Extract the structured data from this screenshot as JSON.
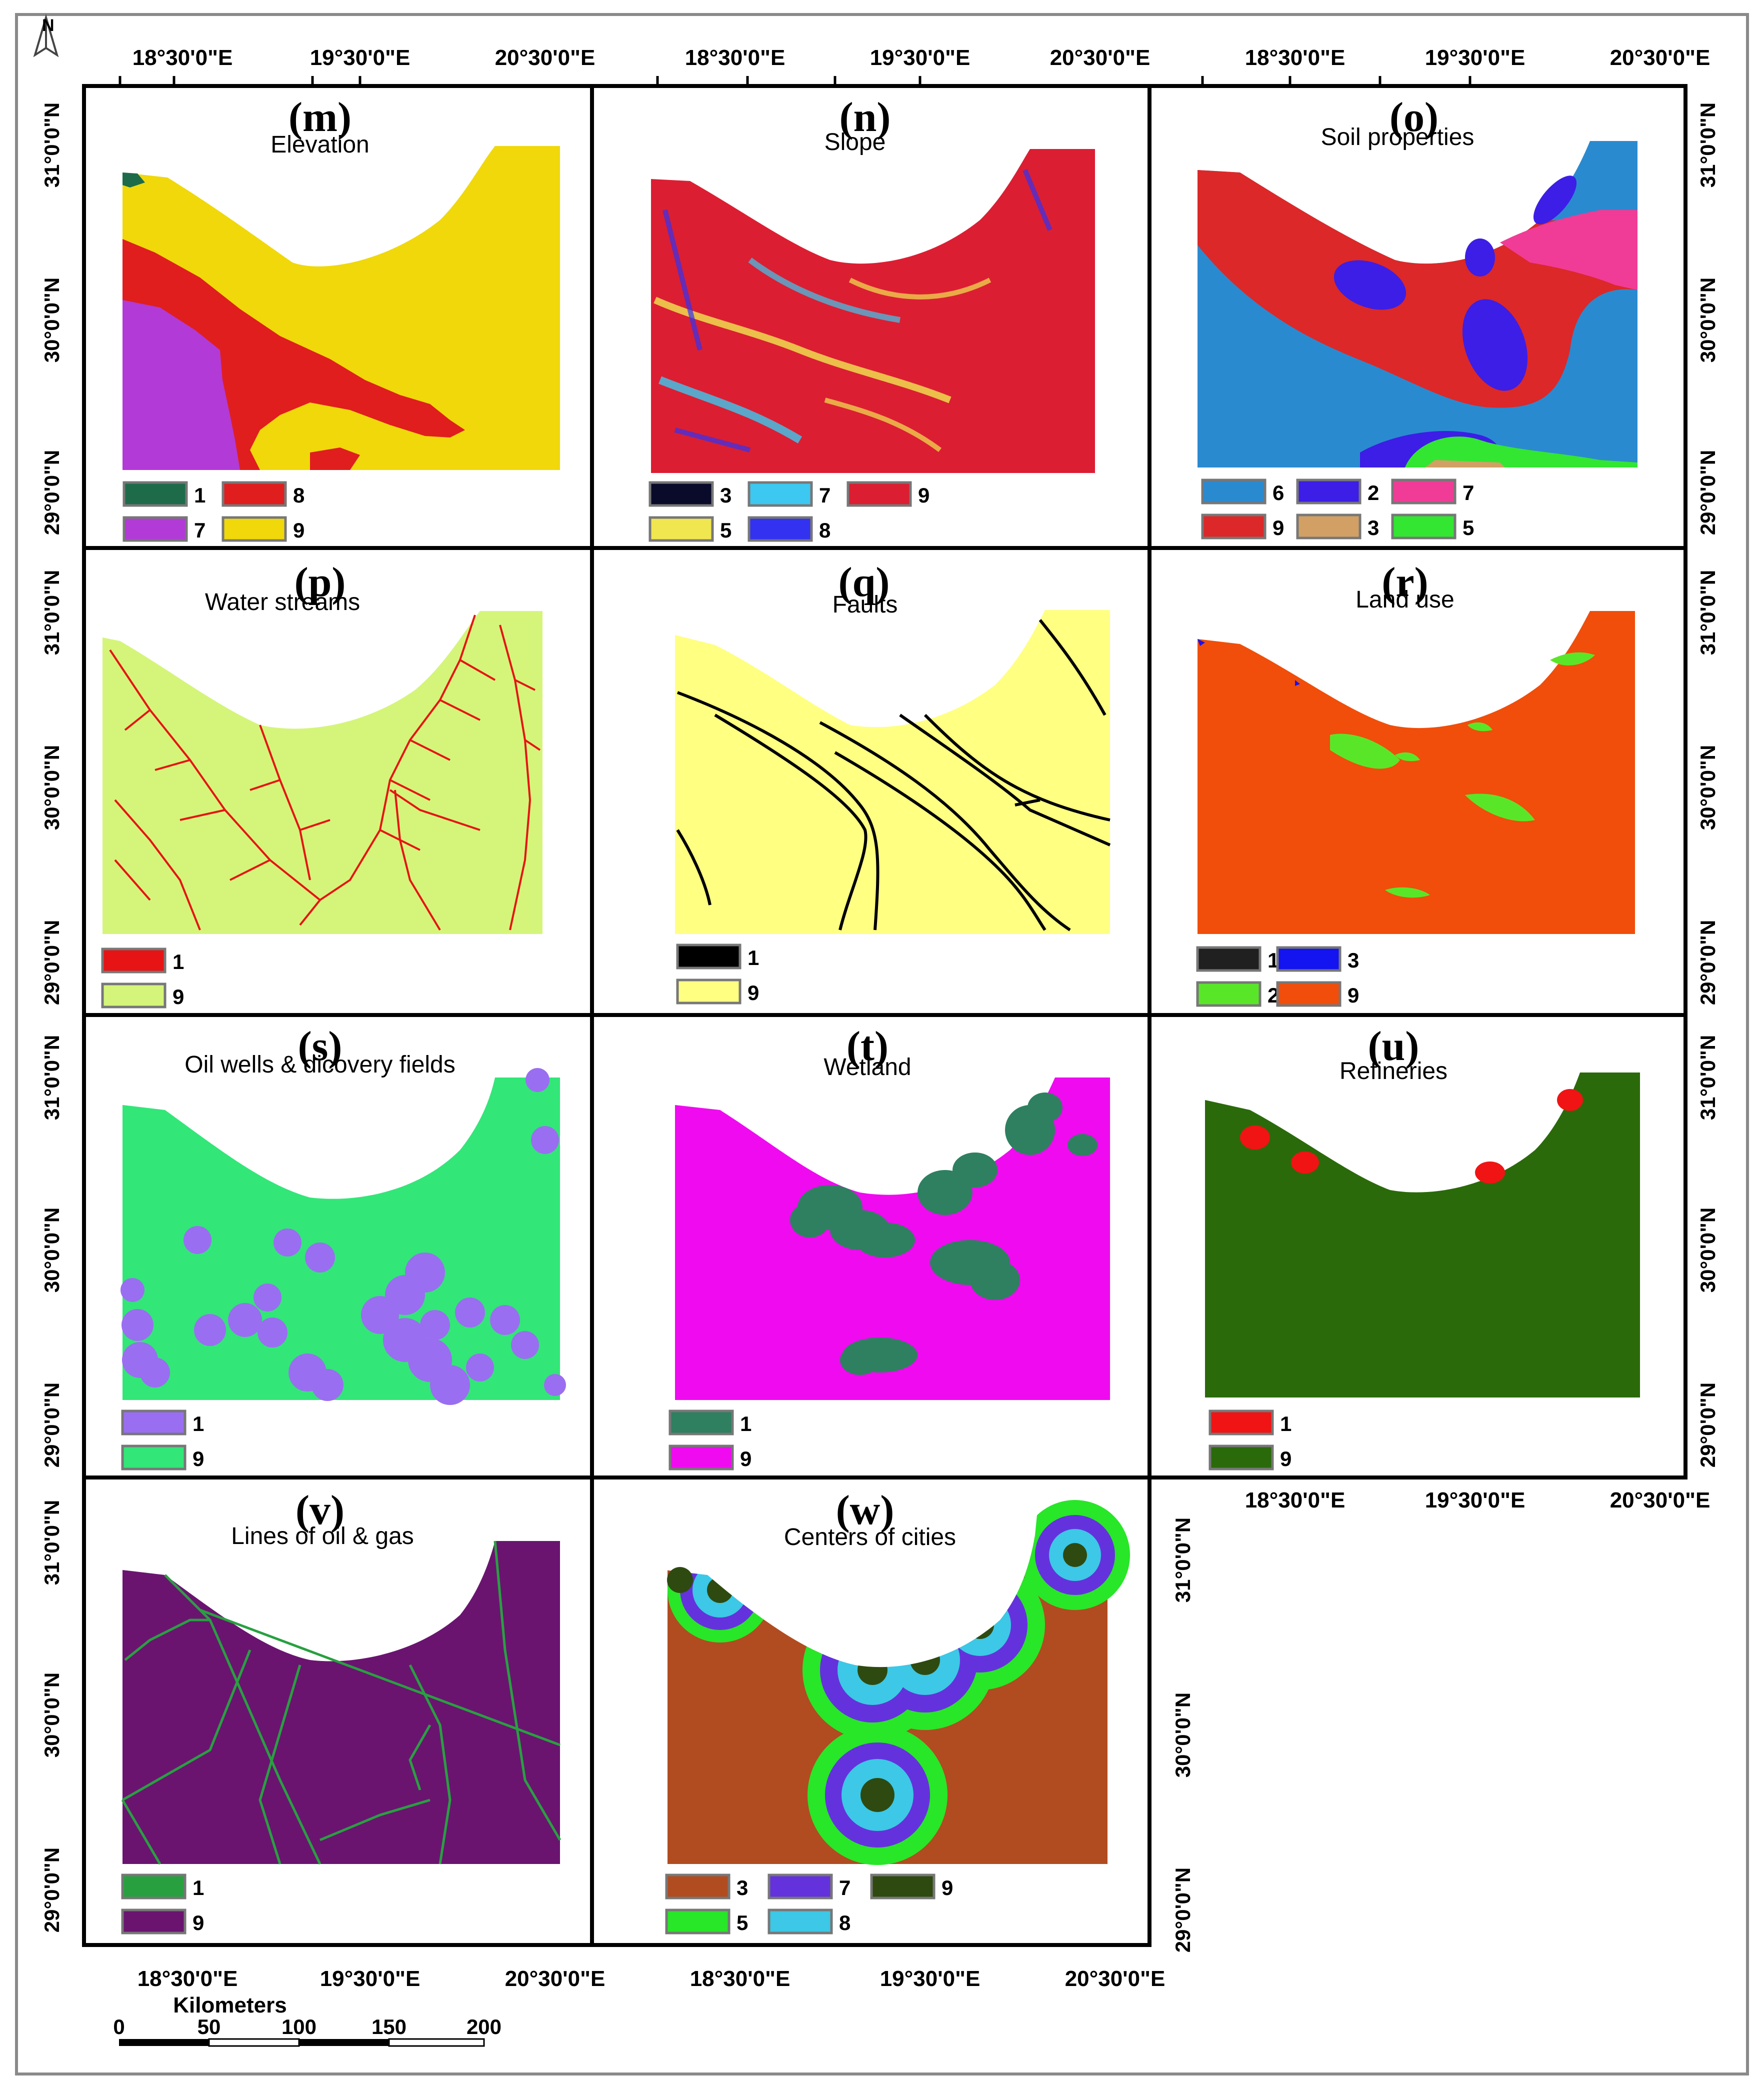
{
  "north_label": "N",
  "lon_ticks": [
    "18°30'0\"E",
    "19°30'0\"E",
    "20°30'0\"E"
  ],
  "lat_ticks": [
    "31°0'0\"N",
    "30°0'0\"N",
    "29°0'0\"N"
  ],
  "panels": [
    {
      "id": "m",
      "letter": "(m)",
      "title": "Elevation",
      "legend": [
        {
          "label": "1",
          "color": "#1e6b4a"
        },
        {
          "label": "8",
          "color": "#e01e1e"
        },
        {
          "label": "7",
          "color": "#b23ad6"
        },
        {
          "label": "9",
          "color": "#f0d80a"
        }
      ]
    },
    {
      "id": "n",
      "letter": "(n)",
      "title": "Slope",
      "legend": [
        {
          "label": "3",
          "color": "#0a0a2a"
        },
        {
          "label": "7",
          "color": "#3cc8f0"
        },
        {
          "label": "9",
          "color": "#dc1e32"
        },
        {
          "label": "5",
          "color": "#f0e650"
        },
        {
          "label": "8",
          "color": "#3232f0"
        }
      ]
    },
    {
      "id": "o",
      "letter": "(o)",
      "title": "Soil properties",
      "legend": [
        {
          "label": "6",
          "color": "#2a8ad0"
        },
        {
          "label": "2",
          "color": "#3c1ee6"
        },
        {
          "label": "7",
          "color": "#f03c96"
        },
        {
          "label": "9",
          "color": "#dc2828"
        },
        {
          "label": "3",
          "color": "#d2a064"
        },
        {
          "label": "5",
          "color": "#32e632"
        }
      ]
    },
    {
      "id": "p",
      "letter": "(p)",
      "title": "Water streams",
      "legend": [
        {
          "label": "1",
          "color": "#e61414"
        },
        {
          "label": "9",
          "color": "#d4f57a"
        }
      ]
    },
    {
      "id": "q",
      "letter": "(q)",
      "title": "Faults",
      "legend": [
        {
          "label": "1",
          "color": "#000000"
        },
        {
          "label": "9",
          "color": "#ffff82"
        }
      ]
    },
    {
      "id": "r",
      "letter": "(r)",
      "title": "Land use",
      "legend": [
        {
          "label": "1",
          "color": "#202020"
        },
        {
          "label": "3",
          "color": "#1414f0"
        },
        {
          "label": "2",
          "color": "#5ae628"
        },
        {
          "label": "9",
          "color": "#f04e0a"
        }
      ]
    },
    {
      "id": "s",
      "letter": "(s)",
      "title": "Oil wells & dicovery fields",
      "legend": [
        {
          "label": "1",
          "color": "#9a6ef0"
        },
        {
          "label": "9",
          "color": "#32e678"
        }
      ]
    },
    {
      "id": "t",
      "letter": "(t)",
      "title": "Wetland",
      "legend": [
        {
          "label": "1",
          "color": "#2e8060"
        },
        {
          "label": "9",
          "color": "#f00af0"
        }
      ]
    },
    {
      "id": "u",
      "letter": "(u)",
      "title": "Refineries",
      "legend": [
        {
          "label": "1",
          "color": "#f01414"
        },
        {
          "label": "9",
          "color": "#2a6a0a"
        }
      ]
    },
    {
      "id": "v",
      "letter": "(v)",
      "title": "Lines of oil & gas",
      "legend": [
        {
          "label": "1",
          "color": "#28a040"
        },
        {
          "label": "9",
          "color": "#6a1470"
        }
      ]
    },
    {
      "id": "w",
      "letter": "(w)",
      "title": "Centers of cities",
      "legend": [
        {
          "label": "3",
          "color": "#b04c20"
        },
        {
          "label": "7",
          "color": "#6432dc"
        },
        {
          "label": "9",
          "color": "#2e4a10"
        },
        {
          "label": "5",
          "color": "#28e628"
        },
        {
          "label": "8",
          "color": "#3cc8e6"
        }
      ]
    }
  ],
  "scale_bar": {
    "unit": "Kilometers",
    "labels": [
      "0",
      "50",
      "100",
      "150",
      "200"
    ]
  }
}
